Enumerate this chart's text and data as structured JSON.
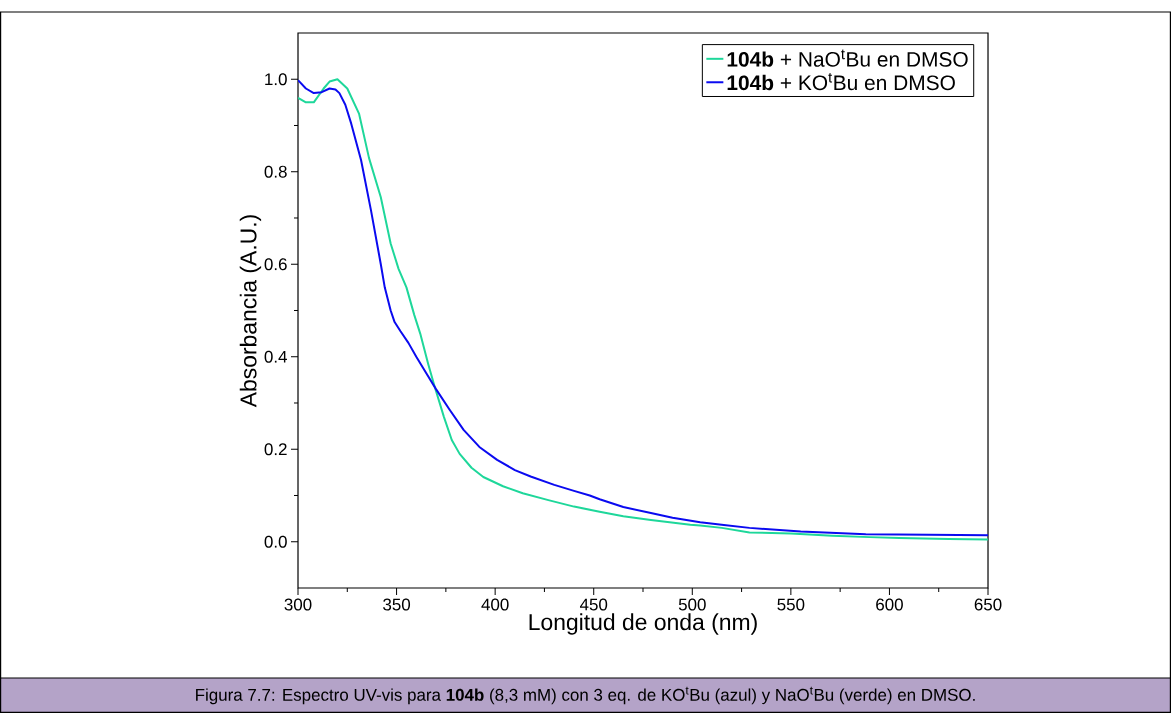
{
  "chart_data": {
    "type": "line",
    "xlabel": "Longitud de onda (nm)",
    "ylabel": "Absorbancia (A.U.)",
    "xlim": [
      300,
      650
    ],
    "ylim": [
      -0.1,
      1.1
    ],
    "xticks": [
      300,
      350,
      400,
      450,
      500,
      550,
      600,
      650
    ],
    "yticks": [
      {
        "value": 0,
        "label": "0.0"
      },
      {
        "value": 0.2,
        "label": "0.2"
      },
      {
        "value": 0.4,
        "label": "0.4"
      },
      {
        "value": 0.6,
        "label": "0.6"
      },
      {
        "value": 0.8,
        "label": "0.8"
      },
      {
        "value": 1.0,
        "label": "1.0"
      }
    ],
    "legend": "top right",
    "series": [
      {
        "name": "**104b** + NaO$^{t}$Bu en DMSO",
        "color": "#1ed79a",
        "x": [
          300,
          304,
          308,
          313,
          316,
          320,
          325,
          331,
          336,
          342,
          347,
          351,
          355,
          359,
          362,
          366,
          369,
          374,
          378,
          382,
          388,
          394,
          404,
          414,
          427,
          440,
          453,
          465,
          479,
          499,
          504,
          515,
          529,
          550,
          571,
          590,
          605,
          630,
          650
        ],
        "values": [
          0.96,
          0.95,
          0.95,
          0.98,
          0.995,
          1.0,
          0.98,
          0.925,
          0.83,
          0.745,
          0.645,
          0.59,
          0.55,
          0.49,
          0.45,
          0.385,
          0.34,
          0.27,
          0.22,
          0.19,
          0.16,
          0.14,
          0.12,
          0.105,
          0.09,
          0.076,
          0.065,
          0.055,
          0.047,
          0.037,
          0.035,
          0.03,
          0.02,
          0.018,
          0.013,
          0.01,
          0.008,
          0.006,
          0.005
        ]
      },
      {
        "name": "**104b** + KO$^{t}$Bu en DMSO",
        "color": "#0a0af0",
        "x": [
          300,
          304,
          308,
          312,
          316,
          319,
          321,
          324,
          327,
          332,
          337,
          342,
          344,
          347,
          349,
          352,
          356,
          360,
          365,
          370,
          377,
          384,
          392,
          401,
          410,
          418,
          430,
          440,
          448,
          453,
          465,
          479,
          490,
          504,
          516,
          529,
          555,
          588,
          620,
          650
        ],
        "values": [
          0.998,
          0.98,
          0.97,
          0.972,
          0.98,
          0.978,
          0.97,
          0.945,
          0.904,
          0.825,
          0.717,
          0.6,
          0.55,
          0.5,
          0.475,
          0.455,
          0.43,
          0.4,
          0.365,
          0.33,
          0.285,
          0.242,
          0.205,
          0.177,
          0.155,
          0.141,
          0.123,
          0.11,
          0.1,
          0.092,
          0.075,
          0.062,
          0.052,
          0.042,
          0.036,
          0.03,
          0.022,
          0.016,
          0.015,
          0.014
        ]
      }
    ],
    "annotations": [
      "Figura 7.7: Espectro UV-vis para **104b** (8,3 mM) con 3 eq. de KO$^{t}$Bu (azul) y NaO$^{t}$Bu (verde) en DMSO."
    ]
  }
}
